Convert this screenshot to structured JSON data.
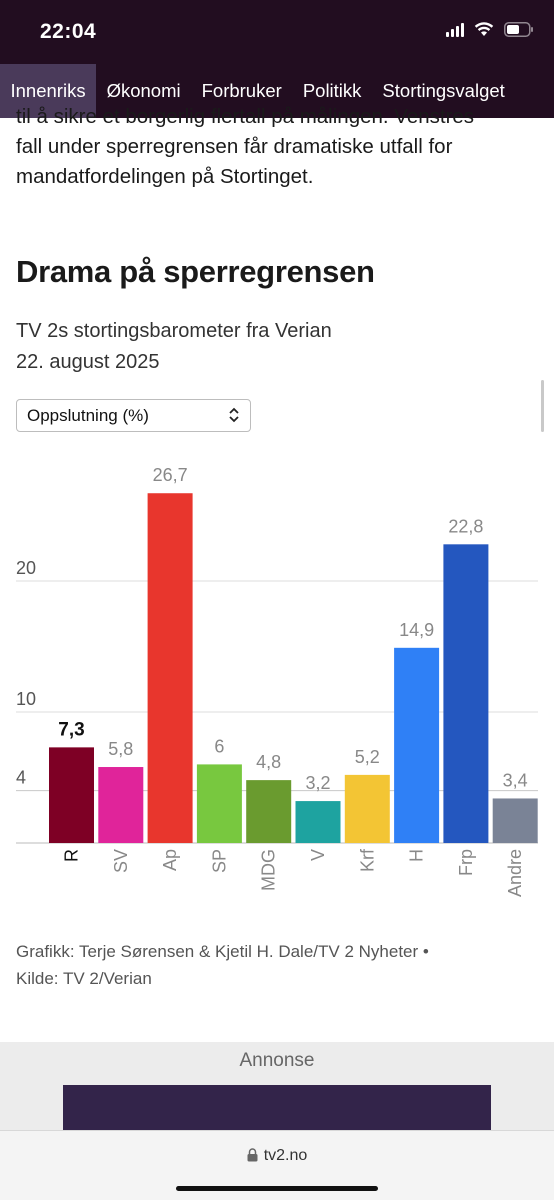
{
  "status_bar": {
    "time": "22:04"
  },
  "nav": {
    "items": [
      {
        "label": "Innenriks",
        "active": true
      },
      {
        "label": "Økonomi",
        "active": false
      },
      {
        "label": "Forbruker",
        "active": false
      },
      {
        "label": "Politikk",
        "active": false
      },
      {
        "label": "Stortingsvalget",
        "active": false
      }
    ]
  },
  "article": {
    "paragraph_lines": [
      "til å sikre et borgerlig flertall på målingen. Venstres",
      "fall under sperregrensen får dramatiske utfall for",
      "mandatfordelingen på Stortinget."
    ],
    "heading": "Drama på sperregrensen",
    "subtitle": "TV 2s stortingsbarometer fra Verian",
    "date": "22. august 2025"
  },
  "dropdown": {
    "selected": "Oppslutning (%)"
  },
  "chart_data": {
    "type": "bar",
    "categories": [
      "R",
      "SV",
      "Ap",
      "SP",
      "MDG",
      "V",
      "Krf",
      "H",
      "Frp",
      "Andre"
    ],
    "values": [
      7.3,
      5.8,
      26.7,
      6,
      4.8,
      3.2,
      5.2,
      14.9,
      22.8,
      3.4
    ],
    "value_labels": [
      "7,3",
      "5,8",
      "26,7",
      "6",
      "4,8",
      "3,2",
      "5,2",
      "14,9",
      "22,8",
      "3,4"
    ],
    "colors": [
      "#7e0025",
      "#e0249a",
      "#e8362d",
      "#78c83f",
      "#6a9b2f",
      "#1ea3a0",
      "#f3c534",
      "#2f80f6",
      "#2457bf",
      "#7a8396"
    ],
    "highlighted_index": 0,
    "y_ticks": [
      4,
      10,
      20
    ],
    "y_tick_labels": [
      "4",
      "10",
      "20"
    ],
    "reference_line": 4,
    "ylim": [
      0,
      28
    ],
    "grid": true
  },
  "credit": {
    "line1": "Grafikk: Terje Sørensen & Kjetil H. Dale/TV 2 Nyheter •",
    "line2": "Kilde: TV 2/Verian"
  },
  "ad": {
    "label": "Annonse"
  },
  "browser": {
    "url": "tv2.no"
  }
}
